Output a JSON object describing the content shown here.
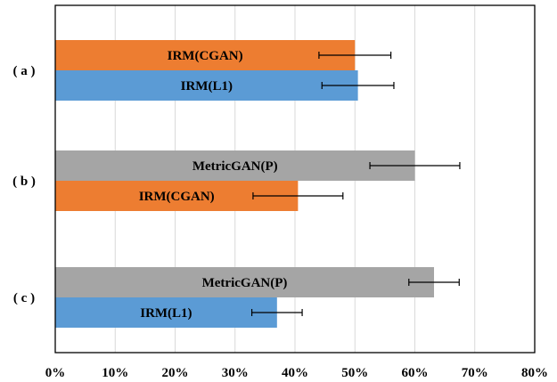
{
  "chart_data": {
    "type": "bar",
    "orientation": "horizontal",
    "grid": true,
    "xlim": [
      0,
      80
    ],
    "x_ticks": [
      "0%",
      "10%",
      "20%",
      "30%",
      "40%",
      "50%",
      "60%",
      "70%",
      "80%"
    ],
    "groups": [
      {
        "label": "( a )",
        "bars": [
          {
            "label": "IRM(CGAN)",
            "value": 50,
            "error": 6,
            "color": "#ED7D31"
          },
          {
            "label": "IRM(L1)",
            "value": 50.5,
            "error": 6,
            "color": "#5B9BD5"
          }
        ]
      },
      {
        "label": "( b )",
        "bars": [
          {
            "label": "MetricGAN(P)",
            "value": 60,
            "error": 7.5,
            "color": "#A5A5A5"
          },
          {
            "label": "IRM(CGAN)",
            "value": 40.5,
            "error": 7.5,
            "color": "#ED7D31"
          }
        ]
      },
      {
        "label": "( c )",
        "bars": [
          {
            "label": "MetricGAN(P)",
            "value": 63.2,
            "error": 4.2,
            "color": "#A5A5A5"
          },
          {
            "label": "IRM(L1)",
            "value": 37,
            "error": 4.2,
            "color": "#5B9BD5"
          }
        ]
      }
    ]
  }
}
